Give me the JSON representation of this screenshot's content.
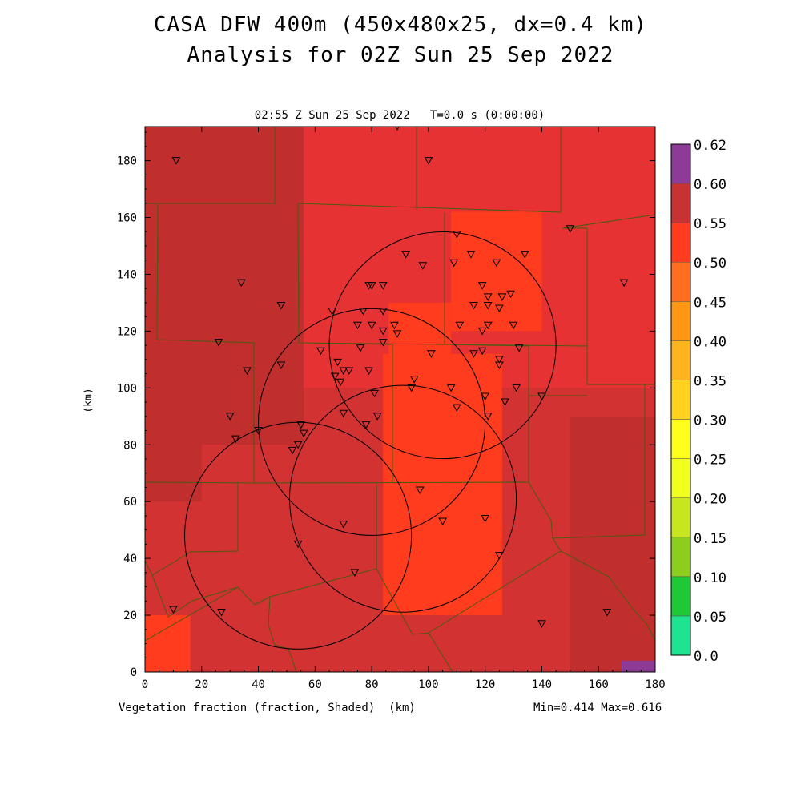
{
  "title_line1": "CASA DFW 400m (450x480x25, dx=0.4 km)",
  "title_line2": "Analysis for 02Z Sun 25 Sep 2022",
  "subtitle": "02:55 Z Sun 25 Sep 2022   T=0.0 s (0:00:00)",
  "x_caption": "Vegetation fraction (fraction, Shaded)  (km)",
  "minmax": "Min=0.414 Max=0.616",
  "chart_data": {
    "type": "heatmap",
    "variable": "Vegetation fraction",
    "units": "fraction",
    "xlim": [
      0,
      180
    ],
    "ylim": [
      0,
      192
    ],
    "ylabel": "(km)",
    "xticks": [
      0,
      20,
      40,
      60,
      80,
      100,
      120,
      140,
      160,
      180
    ],
    "yticks": [
      0,
      20,
      40,
      60,
      80,
      100,
      120,
      140,
      160,
      180
    ],
    "colorbar": {
      "levels": [
        "0.0",
        "0.05",
        "0.10",
        "0.15",
        "0.20",
        "0.25",
        "0.30",
        "0.35",
        "0.40",
        "0.45",
        "0.50",
        "0.55",
        "0.60",
        "0.62"
      ],
      "colors": [
        "#1ee391",
        "#1ec837",
        "#8ccd1e",
        "#c8e61e",
        "#f0ff1e",
        "#ffff1e",
        "#ffd21e",
        "#ffb41e",
        "#ff9614",
        "#ff6e1e",
        "#ff3c1e",
        "#e63232",
        "#c83232",
        "#8c3232",
        "#8c3c96"
      ]
    },
    "field": [
      {
        "x0": 0,
        "x1": 180,
        "y0": 0,
        "y1": 192,
        "level": "0.50-0.55"
      },
      {
        "x0": 0,
        "x1": 56,
        "y0": 80,
        "y1": 192,
        "level": "0.55-0.60"
      },
      {
        "x0": 0,
        "x1": 20,
        "y0": 60,
        "y1": 100,
        "level": "0.55-0.60"
      },
      {
        "x0": 56,
        "x1": 180,
        "y0": 100,
        "y1": 192,
        "level": "0.45-0.50"
      },
      {
        "x0": 108,
        "x1": 140,
        "y0": 120,
        "y1": 162,
        "level": "0.40-0.45"
      },
      {
        "x0": 86,
        "x1": 108,
        "y0": 90,
        "y1": 130,
        "level": "0.40-0.45"
      },
      {
        "x0": 84,
        "x1": 126,
        "y0": 20,
        "y1": 112,
        "level": "0.40-0.45"
      },
      {
        "x0": 0,
        "x1": 16,
        "y0": 0,
        "y1": 20,
        "level": "0.40-0.45"
      },
      {
        "x0": 150,
        "x1": 180,
        "y0": 0,
        "y1": 90,
        "level": "0.55-0.60"
      },
      {
        "x0": 168,
        "x1": 180,
        "y0": 0,
        "y1": 4,
        "level": "0.60-0.62"
      }
    ],
    "radars": [
      {
        "cx": 105,
        "cy": 115,
        "r": 40
      },
      {
        "cx": 80,
        "cy": 88,
        "r": 40
      },
      {
        "cx": 91,
        "cy": 61,
        "r": 40
      },
      {
        "cx": 54,
        "cy": 48,
        "r": 40
      }
    ],
    "stations": [
      [
        11,
        180
      ],
      [
        89,
        192
      ],
      [
        100,
        180
      ],
      [
        150,
        156
      ],
      [
        169,
        137
      ],
      [
        34,
        137
      ],
      [
        48,
        129
      ],
      [
        92,
        147
      ],
      [
        98,
        143
      ],
      [
        110,
        154
      ],
      [
        115,
        147
      ],
      [
        109,
        144
      ],
      [
        124,
        144
      ],
      [
        134,
        147
      ],
      [
        79,
        136
      ],
      [
        80,
        136
      ],
      [
        84,
        136
      ],
      [
        66,
        127
      ],
      [
        77,
        127
      ],
      [
        84,
        127
      ],
      [
        88,
        122
      ],
      [
        75,
        122
      ],
      [
        80,
        122
      ],
      [
        84,
        120
      ],
      [
        89,
        119
      ],
      [
        84,
        116
      ],
      [
        119,
        136
      ],
      [
        121,
        132
      ],
      [
        116,
        129
      ],
      [
        121,
        129
      ],
      [
        126,
        132
      ],
      [
        129,
        133
      ],
      [
        125,
        128
      ],
      [
        111,
        122
      ],
      [
        119,
        120
      ],
      [
        121,
        122
      ],
      [
        130,
        122
      ],
      [
        26,
        116
      ],
      [
        36,
        106
      ],
      [
        48,
        108
      ],
      [
        62,
        113
      ],
      [
        68,
        109
      ],
      [
        76,
        114
      ],
      [
        79,
        106
      ],
      [
        67,
        104
      ],
      [
        70,
        106
      ],
      [
        72,
        106
      ],
      [
        69,
        102
      ],
      [
        81,
        98
      ],
      [
        95,
        103
      ],
      [
        94,
        100
      ],
      [
        101,
        112
      ],
      [
        116,
        112
      ],
      [
        119,
        113
      ],
      [
        125,
        110
      ],
      [
        125,
        108
      ],
      [
        132,
        114
      ],
      [
        108,
        100
      ],
      [
        120,
        97
      ],
      [
        127,
        95
      ],
      [
        131,
        100
      ],
      [
        140,
        97
      ],
      [
        110,
        93
      ],
      [
        30,
        90
      ],
      [
        32,
        82
      ],
      [
        40,
        85
      ],
      [
        55,
        87
      ],
      [
        56,
        84
      ],
      [
        54,
        80
      ],
      [
        52,
        78
      ],
      [
        70,
        91
      ],
      [
        78,
        87
      ],
      [
        82,
        90
      ],
      [
        121,
        90
      ],
      [
        97,
        64
      ],
      [
        70,
        52
      ],
      [
        105,
        53
      ],
      [
        120,
        54
      ],
      [
        54,
        45
      ],
      [
        74,
        35
      ],
      [
        125,
        41
      ],
      [
        10,
        22
      ],
      [
        27,
        21
      ],
      [
        140,
        17
      ],
      [
        163,
        21
      ]
    ]
  }
}
